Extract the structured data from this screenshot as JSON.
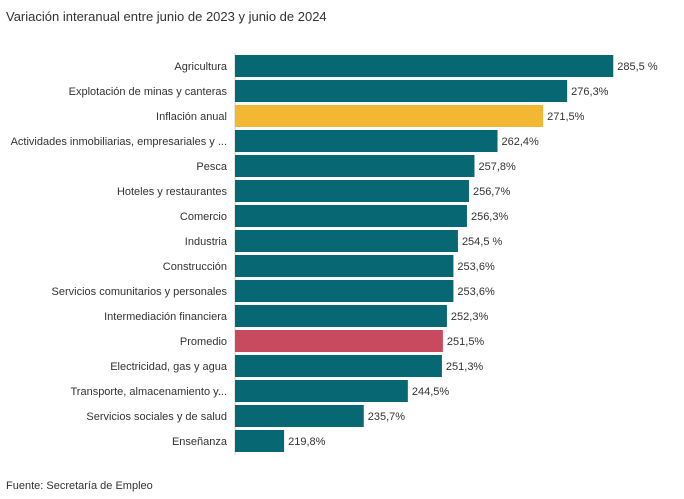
{
  "chart_data": {
    "type": "bar",
    "orientation": "horizontal",
    "title": "Variación interanual entre junio de 2023 y junio de 2024",
    "source": "Fuente: Secretaría de Empleo",
    "xlabel": "",
    "ylabel": "",
    "xlim": [
      210,
      290
    ],
    "grid": false,
    "categories": [
      "Agricultura",
      "Explotación de minas y canteras",
      "Inflación anual",
      "Actividades inmobiliarias, empresariales y ...",
      "Pesca",
      "Hoteles y restaurantes",
      "Comercio",
      "Industria",
      "Construcción",
      "Servicios comunitarios y personales",
      "Intermediación financiera",
      "Promedio",
      "Electricidad, gas y agua",
      "Transporte, almacenamiento y...",
      "Servicios sociales y de salud",
      "Enseñanza"
    ],
    "values": [
      285.5,
      276.3,
      271.5,
      262.4,
      257.8,
      256.7,
      256.3,
      254.5,
      253.6,
      253.6,
      252.3,
      251.5,
      251.3,
      244.5,
      235.7,
      219.8
    ],
    "labels": [
      "285,5 %",
      "276,3%",
      "271,5%",
      "262,4%",
      "257,8%",
      "256,7%",
      "256,3%",
      "254,5 %",
      "253,6%",
      "253,6%",
      "252,3%",
      "251,5%",
      "251,3%",
      "244,5%",
      "235,7%",
      "219,8%"
    ],
    "highlight": {
      "Inflación anual": "#F2B733",
      "Promedio": "#C74A5E"
    },
    "color": "#076873"
  }
}
